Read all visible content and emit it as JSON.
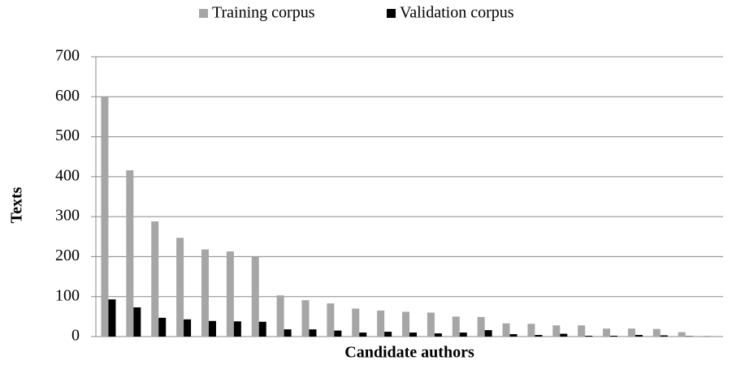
{
  "chart_data": {
    "type": "bar",
    "x_label": "Candidate authors",
    "y_label": "Texts",
    "categories": [
      null,
      null,
      null,
      null,
      null,
      null,
      null,
      null,
      null,
      null,
      null,
      null,
      null,
      null,
      null,
      null,
      null,
      null,
      null,
      null,
      null,
      null,
      null,
      null,
      null
    ],
    "series": [
      {
        "name": "Training corpus",
        "color": "#a6a6a6",
        "values": [
          600,
          416,
          288,
          247,
          218,
          213,
          200,
          103,
          91,
          83,
          70,
          65,
          62,
          60,
          50,
          49,
          33,
          32,
          28,
          28,
          20,
          20,
          19,
          11,
          2
        ]
      },
      {
        "name": "Validation corpus",
        "color": "#000000",
        "values": [
          93,
          73,
          47,
          43,
          39,
          38,
          37,
          18,
          18,
          15,
          10,
          12,
          10,
          8,
          10,
          16,
          6,
          4,
          7,
          2,
          2,
          4,
          3,
          1,
          0
        ]
      }
    ],
    "ylim": [
      0,
      700
    ],
    "yticks": [
      0,
      100,
      200,
      300,
      400,
      500,
      600,
      700
    ],
    "grid": true,
    "legend": "top"
  }
}
